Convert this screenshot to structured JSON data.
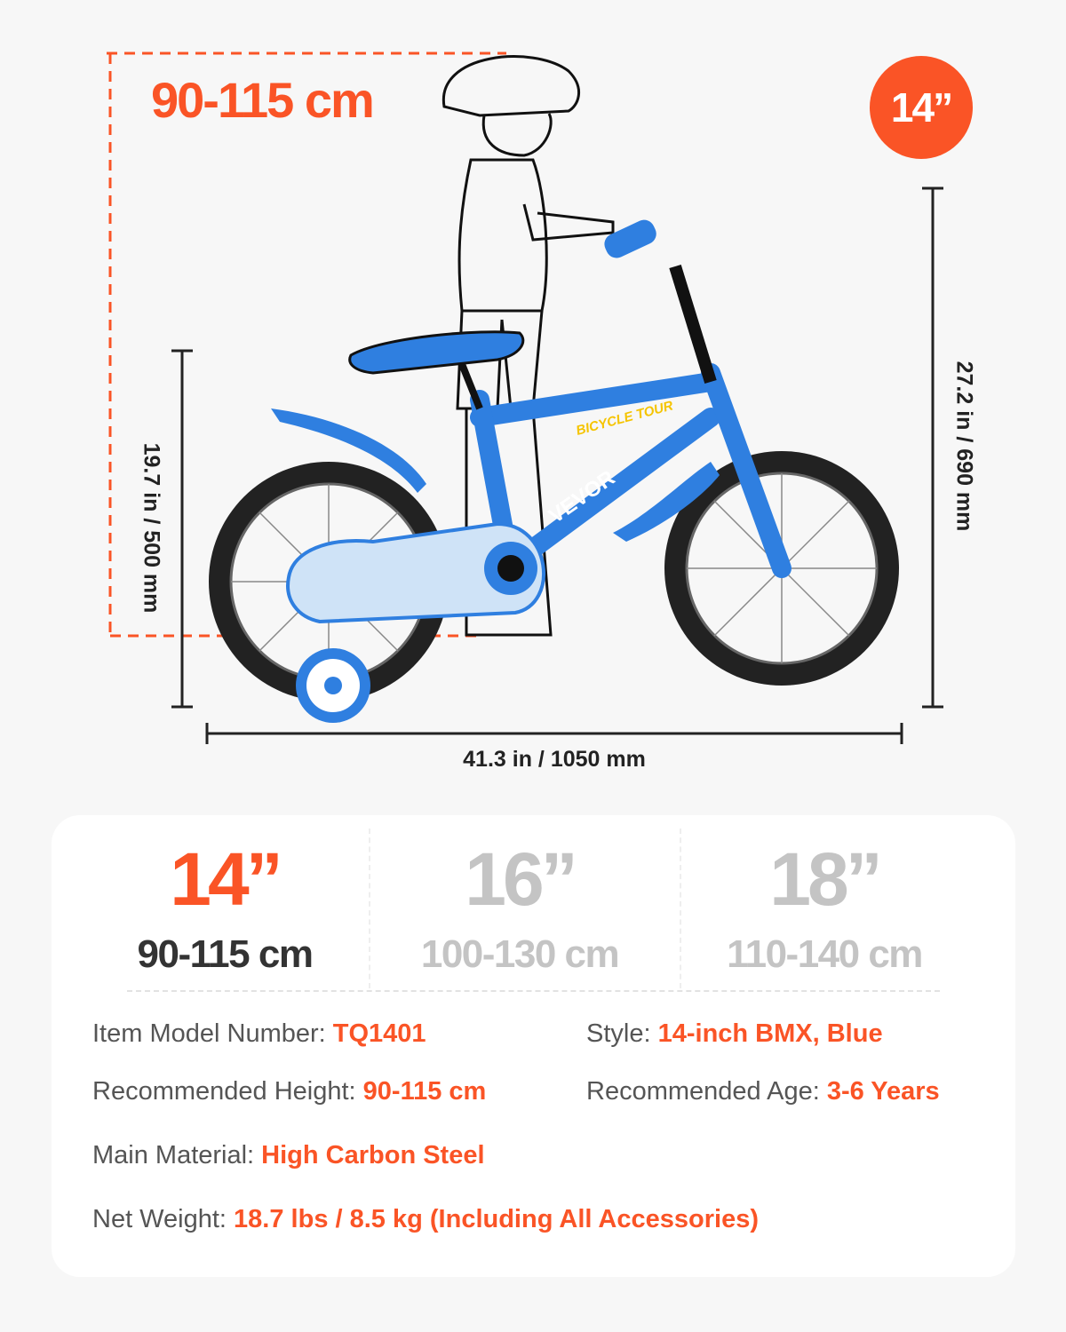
{
  "hero": {
    "height_range": "90-115 cm",
    "size_badge": "14”",
    "seat_height": "19.7 in / 500 mm",
    "total_height": "27.2 in / 690 mm",
    "length": "41.3 in / 1050 mm",
    "brand_on_frame": "VEVOR",
    "frame_decal": "BICYCLE TOUR"
  },
  "sizes": [
    {
      "size": "14”",
      "range": "90-115 cm",
      "selected": true
    },
    {
      "size": "16”",
      "range": "100-130 cm",
      "selected": false
    },
    {
      "size": "18”",
      "range": "110-140 cm",
      "selected": false
    }
  ],
  "specs": {
    "model_label": "Item Model Number: ",
    "model_value": "TQ1401",
    "style_label": "Style: ",
    "style_value": "14-inch BMX, Blue",
    "height_label": "Recommended Height: ",
    "height_value": "90-115 cm",
    "age_label": "Recommended Age: ",
    "age_value": "3-6 Years",
    "material_label": "Main Material: ",
    "material_value": "High Carbon Steel",
    "weight_label": "Net Weight: ",
    "weight_value": "18.7 lbs / 8.5 kg (Including All Accessories)"
  },
  "colors": {
    "accent": "#fa5426",
    "bike_blue": "#2f7fe0",
    "muted": "#c4c4c4",
    "dark": "#333333"
  }
}
